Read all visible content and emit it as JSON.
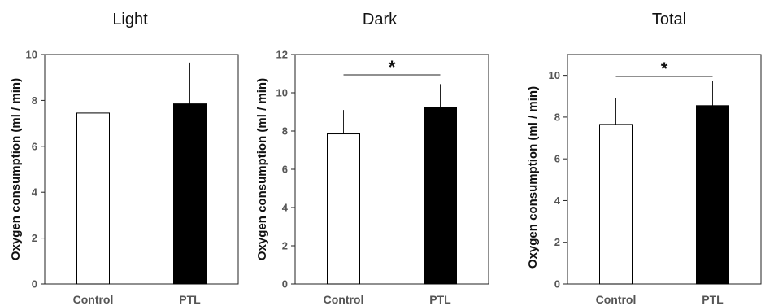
{
  "chart_data": [
    {
      "type": "bar",
      "title": "Light",
      "ylabel": "Oxygen consumption (ml / min)",
      "xlabel": "",
      "categories": [
        "Control",
        "PTL"
      ],
      "values": [
        7.45,
        7.85
      ],
      "errors": [
        1.6,
        1.8
      ],
      "ylim": [
        0,
        10
      ],
      "yticks": [
        "0",
        "2",
        "4",
        "6",
        "8",
        "10"
      ],
      "significance": null,
      "bar_colors": [
        "#ffffff",
        "#000000"
      ]
    },
    {
      "type": "bar",
      "title": "Dark",
      "ylabel": "Oxygen consumption (ml / min)",
      "xlabel": "",
      "categories": [
        "Control",
        "PTL"
      ],
      "values": [
        7.85,
        9.25
      ],
      "errors": [
        1.25,
        1.2
      ],
      "ylim": [
        0,
        12
      ],
      "yticks": [
        "0",
        "2",
        "4",
        "6",
        "8",
        "10",
        "12"
      ],
      "significance": {
        "label": "*",
        "between": [
          "Control",
          "PTL"
        ]
      },
      "bar_colors": [
        "#ffffff",
        "#000000"
      ]
    },
    {
      "type": "bar",
      "title": "Total",
      "ylabel": "Oxygen consumption (ml / min)",
      "xlabel": "",
      "categories": [
        "Control",
        "PTL"
      ],
      "values": [
        7.65,
        8.55
      ],
      "errors": [
        1.25,
        1.2
      ],
      "ylim": [
        0,
        11
      ],
      "yticks": [
        "0",
        "2",
        "4",
        "6",
        "8",
        "10"
      ],
      "significance": {
        "label": "*",
        "between": [
          "Control",
          "PTL"
        ]
      },
      "bar_colors": [
        "#ffffff",
        "#000000"
      ]
    }
  ]
}
